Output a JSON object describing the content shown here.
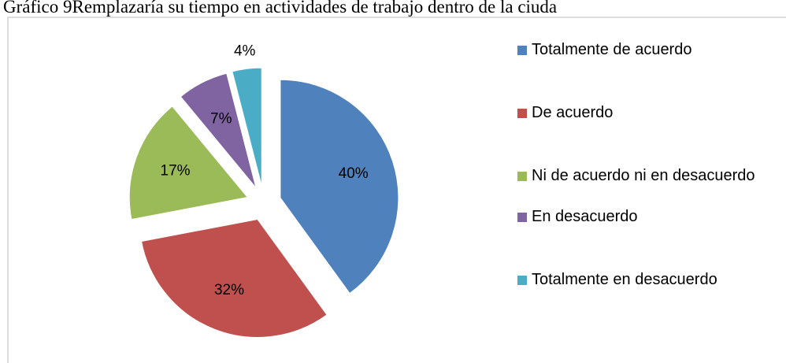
{
  "chart_data": {
    "type": "pie",
    "title": "Gráfico 9Remplazaría su tiempo en actividades de trabajo dentro de la ciuda",
    "categories": [
      "Totalmente de acuerdo",
      "De acuerdo",
      "Ni de acuerdo ni en desacuerdo",
      "En desacuerdo",
      "Totalmente en desacuerdo"
    ],
    "values": [
      40,
      32,
      17,
      7,
      4
    ],
    "value_labels": [
      "40%",
      "32%",
      "17%",
      "7%",
      "4%"
    ],
    "colors": [
      "#4f81bd",
      "#c0504d",
      "#9bbb59",
      "#8064a2",
      "#4bacc6"
    ],
    "legend": "right"
  }
}
